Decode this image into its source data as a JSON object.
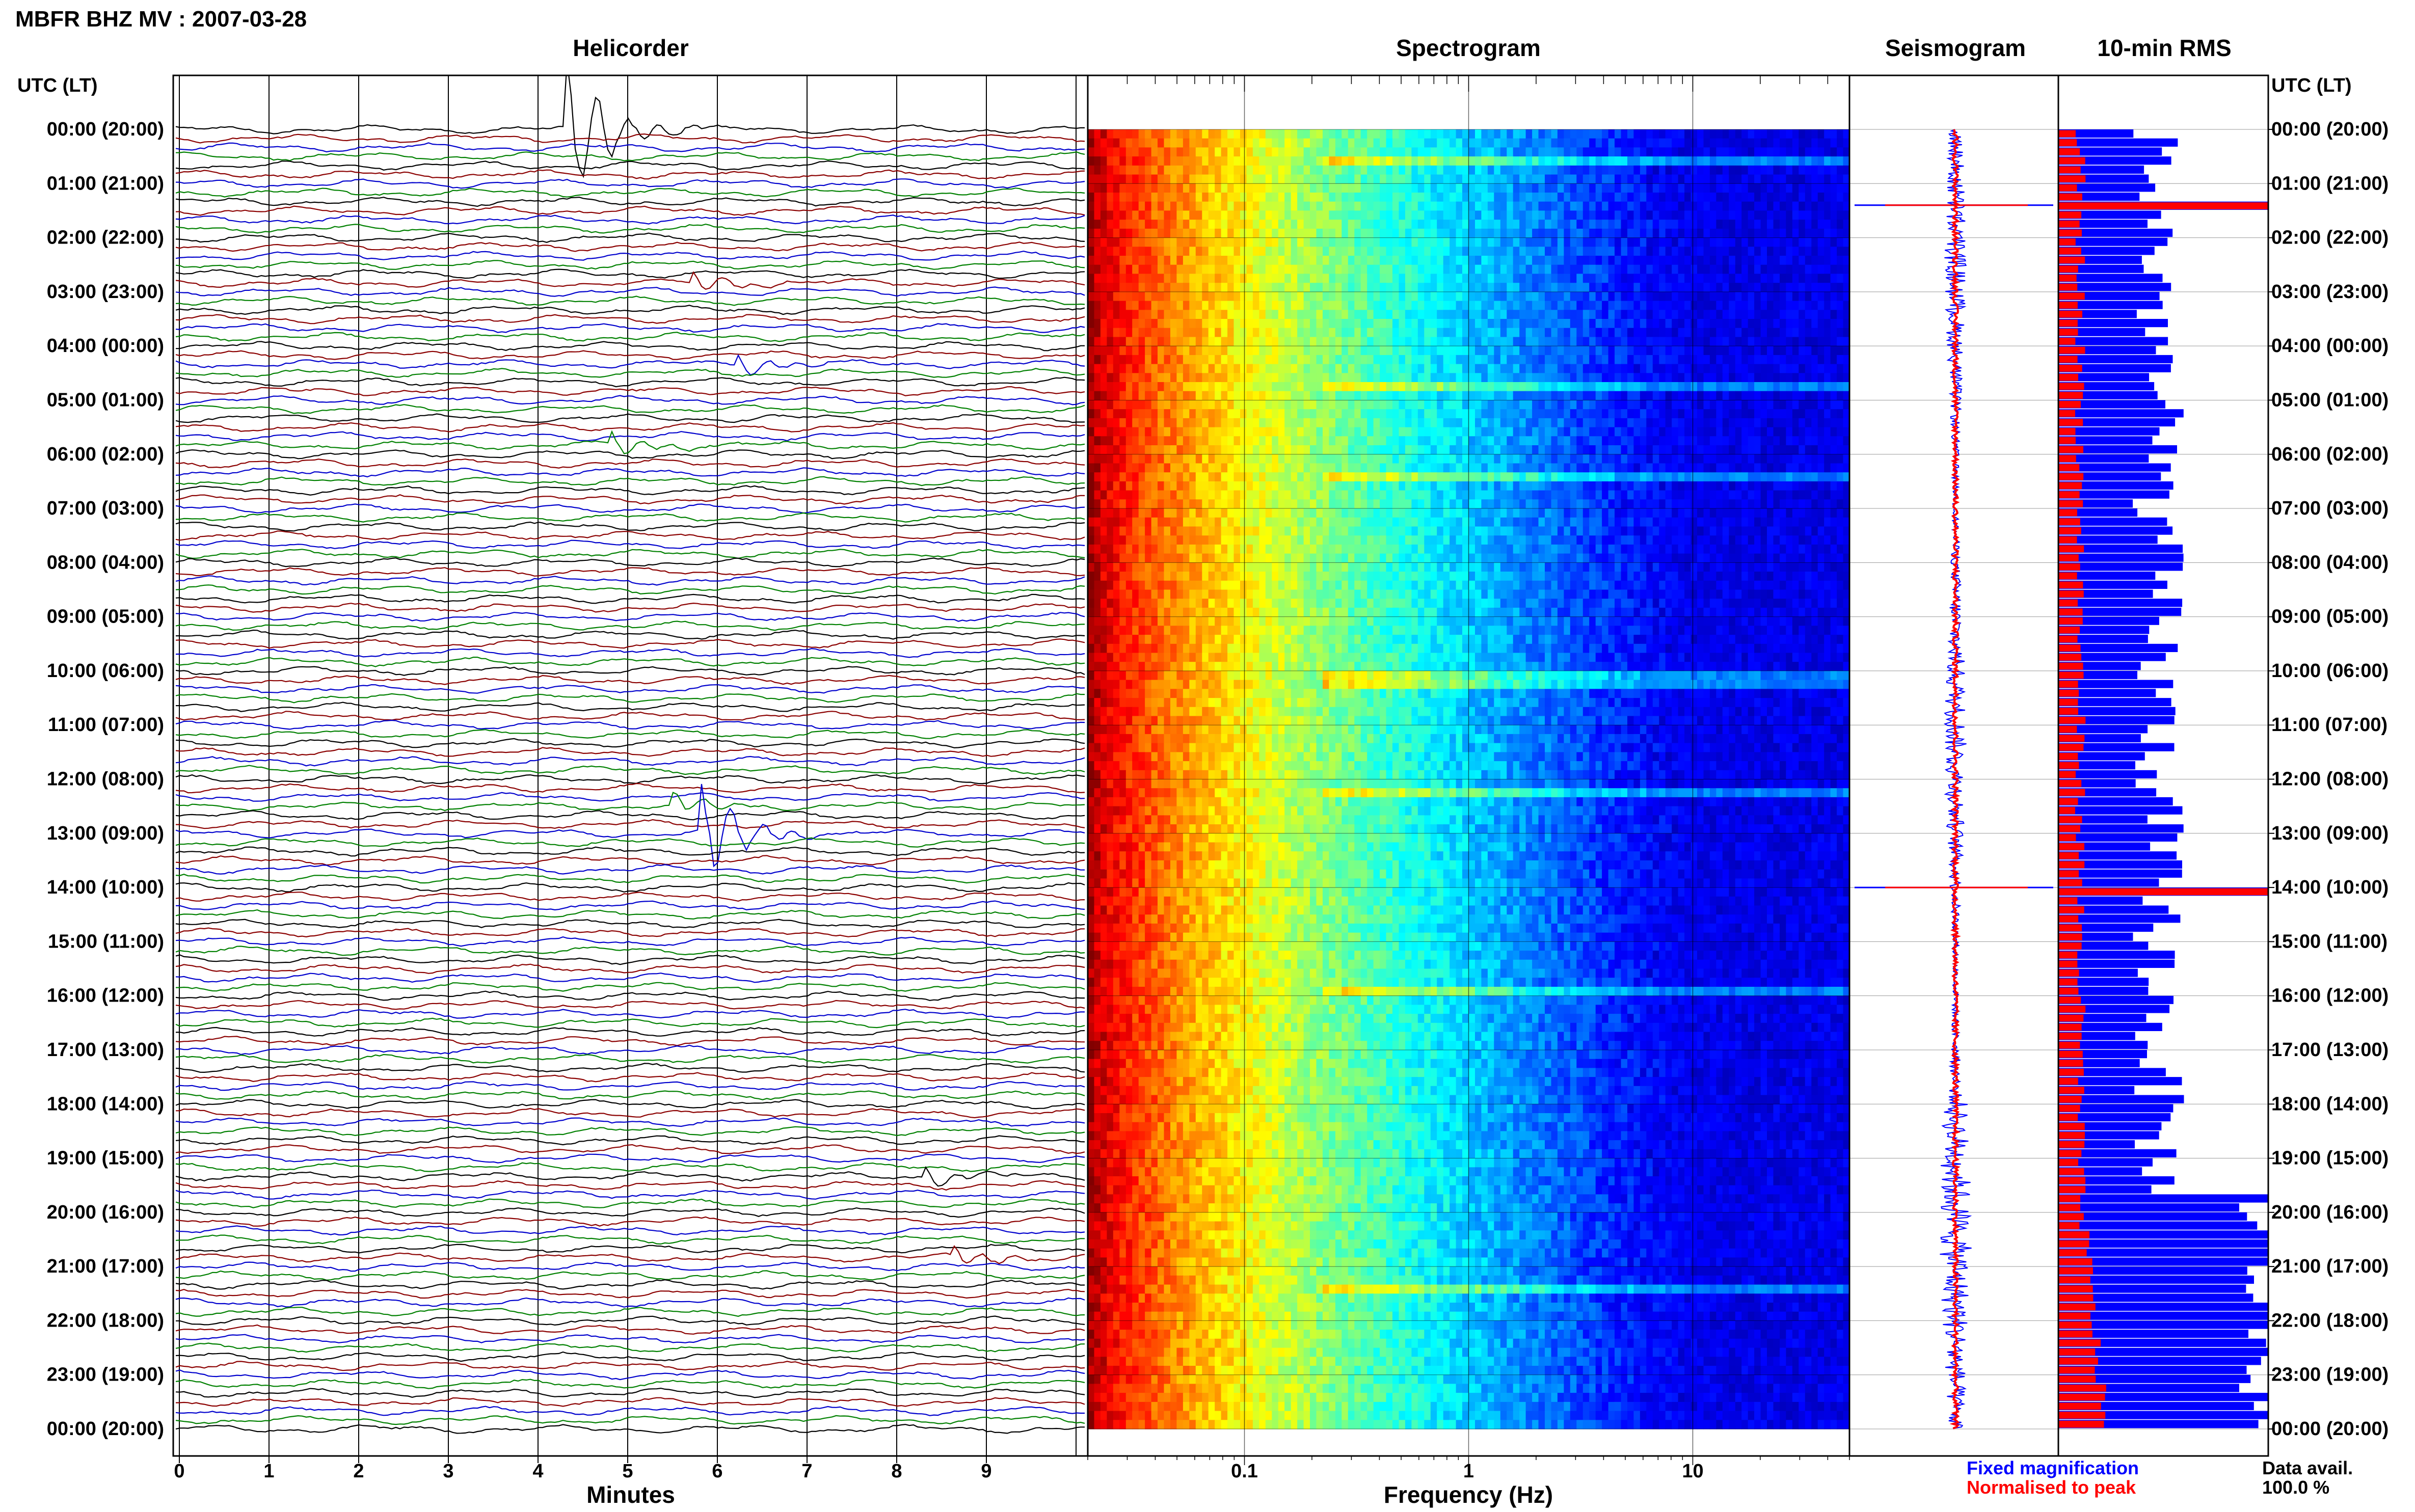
{
  "header": {
    "title": "MBFR BHZ MV : 2007-03-28"
  },
  "panels": {
    "helicorder": "Helicorder",
    "spectrogram": "Spectrogram",
    "seismogram": "Seismogram",
    "rms": "10-min RMS"
  },
  "axes": {
    "left_time_label": "UTC (LT)",
    "right_time_label": "UTC (LT)",
    "minutes_label": "Minutes",
    "frequency_label": "Frequency (Hz)"
  },
  "legend": {
    "fixed": "Fixed magnification",
    "fixed_color": "#0000ff",
    "normalised": "Normalised to peak",
    "normalised_color": "#ff0000"
  },
  "data_avail": {
    "label": "Data avail.",
    "value": "100.0 %"
  },
  "colors": {
    "trace_cycle": [
      "#000000",
      "#8b0000",
      "#0000cd",
      "#008000"
    ],
    "rms_fixed": "#0000ff",
    "rms_peak": "#ff0000"
  },
  "chart_data": [
    {
      "type": "line",
      "title": "Helicorder",
      "xlabel": "Minutes",
      "ylabel": "UTC (LT)",
      "xlim": [
        0,
        10
      ],
      "x_ticks": [
        "0",
        "1",
        "2",
        "3",
        "4",
        "5",
        "6",
        "7",
        "8",
        "9"
      ],
      "time_labels": [
        "00:00 (20:00)",
        "01:00 (21:00)",
        "02:00 (22:00)",
        "03:00 (23:00)",
        "04:00 (00:00)",
        "05:00 (01:00)",
        "06:00 (02:00)",
        "07:00 (03:00)",
        "08:00 (04:00)",
        "09:00 (05:00)",
        "10:00 (06:00)",
        "11:00 (07:00)",
        "12:00 (08:00)",
        "13:00 (09:00)",
        "14:00 (10:00)",
        "15:00 (11:00)",
        "16:00 (12:00)",
        "17:00 (13:00)",
        "18:00 (14:00)",
        "19:00 (15:00)",
        "20:00 (16:00)",
        "21:00 (17:00)",
        "22:00 (18:00)",
        "23:00 (19:00)",
        "00:00 (20:00)"
      ],
      "rows_per_hour": 6,
      "events": [
        {
          "hour": 0.0,
          "minute": 4.4,
          "note": "large pulse"
        },
        {
          "hour": 2.8,
          "minute": 5.8
        },
        {
          "hour": 4.4,
          "minute": 6.3
        },
        {
          "hour": 5.9,
          "minute": 4.9
        },
        {
          "hour": 12.5,
          "minute": 5.6
        },
        {
          "hour": 13.0,
          "minute": 5.9,
          "note": "large event"
        },
        {
          "hour": 19.3,
          "minute": 8.4
        },
        {
          "hour": 20.9,
          "minute": 8.7
        }
      ]
    },
    {
      "type": "heatmap",
      "title": "Spectrogram",
      "xlabel": "Frequency (Hz)",
      "x_scale": "log",
      "xlim": [
        0.02,
        50
      ],
      "x_ticks": [
        "0.1",
        "1",
        "10"
      ],
      "colormap": "jet"
    },
    {
      "type": "line",
      "title": "Seismogram",
      "series": [
        {
          "name": "Fixed magnification"
        },
        {
          "name": "Normalised to peak"
        }
      ]
    },
    {
      "type": "bar",
      "title": "10-min RMS",
      "orientation": "horizontal",
      "series": [
        {
          "name": "Fixed magnification"
        },
        {
          "name": "Normalised to peak"
        }
      ],
      "spikes_hours": [
        1.4,
        14.0
      ]
    }
  ]
}
